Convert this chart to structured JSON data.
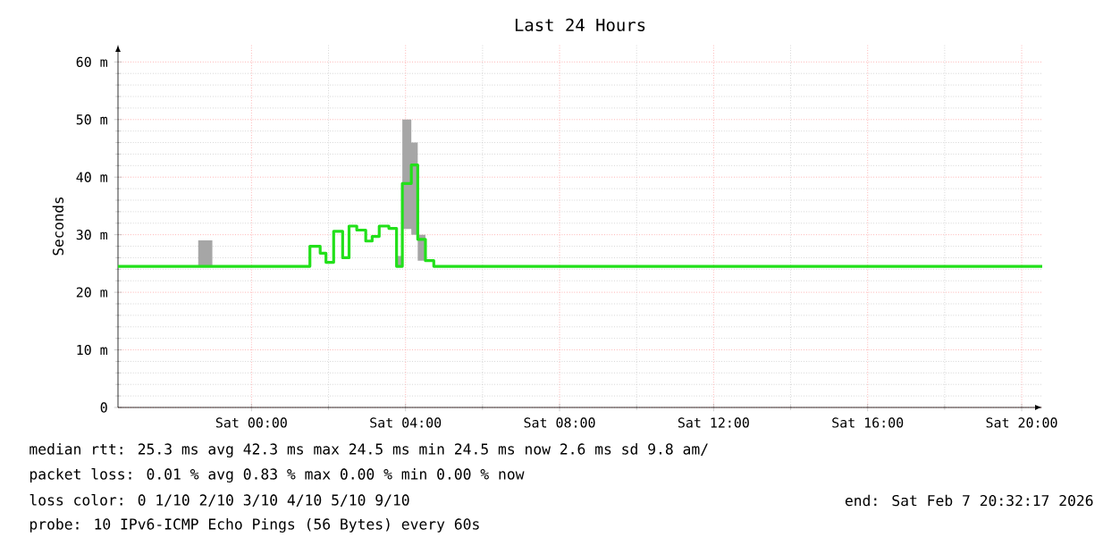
{
  "chart_data": {
    "type": "step",
    "title": "Last 24 Hours",
    "ylabel": "Seconds",
    "xlim": [
      "2026-02-06T20:32",
      "2026-02-07T20:32"
    ],
    "ylim": [
      0,
      63
    ],
    "xticks": [
      {
        "value": "2026-02-07T00:00",
        "label": "Sat 00:00"
      },
      {
        "value": "2026-02-07T04:00",
        "label": "Sat 04:00"
      },
      {
        "value": "2026-02-07T08:00",
        "label": "Sat 08:00"
      },
      {
        "value": "2026-02-07T12:00",
        "label": "Sat 12:00"
      },
      {
        "value": "2026-02-07T16:00",
        "label": "Sat 16:00"
      },
      {
        "value": "2026-02-07T20:00",
        "label": "Sat 20:00"
      }
    ],
    "yticks": [
      0,
      {
        "value": 10,
        "label": "10 m"
      },
      {
        "value": 20,
        "label": "20 m"
      },
      {
        "value": 30,
        "label": "30 m"
      },
      {
        "value": 40,
        "label": "40 m"
      },
      {
        "value": 50,
        "label": "50 m"
      },
      {
        "value": 60,
        "label": "60 m"
      }
    ],
    "grid": true,
    "series": [
      {
        "color": "#22e01a",
        "x": [
          "2026-02-06T20:32",
          "2026-02-06T22:37",
          "2026-02-06T22:59",
          "2026-02-07T01:31",
          "2026-02-07T01:47",
          "2026-02-07T01:56",
          "2026-02-07T02:08",
          "2026-02-07T02:22",
          "2026-02-07T02:32",
          "2026-02-07T02:44",
          "2026-02-07T02:58",
          "2026-02-07T03:08",
          "2026-02-07T03:19",
          "2026-02-07T03:34",
          "2026-02-07T03:46",
          "2026-02-07T03:55",
          "2026-02-07T04:09",
          "2026-02-07T04:19",
          "2026-02-07T04:31",
          "2026-02-07T04:44",
          "2026-02-07T20:32"
        ],
        "values": [
          24.5,
          24.5,
          24.5,
          28,
          26.8,
          25.2,
          30.6,
          26,
          31.5,
          30.8,
          28.9,
          29.7,
          31.5,
          31.1,
          24.5,
          38.9,
          42.1,
          29.2,
          25.5,
          24.5,
          24.5
        ],
        "lower": [
          24.5,
          24.5,
          24.5,
          28,
          26.8,
          25.2,
          30.6,
          26,
          31.5,
          30.8,
          28.9,
          29.7,
          31.5,
          31.1,
          24.5,
          31,
          30,
          25.5,
          25.5,
          24.5,
          24.5
        ],
        "upper": [
          24.5,
          29,
          24.5,
          28,
          26.8,
          25.2,
          30.6,
          26,
          31.5,
          30.8,
          28.9,
          29.7,
          31.5,
          31.1,
          26.3,
          50,
          46,
          30,
          25.5,
          24.5,
          24.5
        ]
      }
    ],
    "annotations": [
      "median rtt:  25.3 ms avg  42.3 ms max  24.5 ms min  24.5 ms now  2.6 ms sd  9.8  am/",
      "packet loss: 0.01 % avg  0.83 % max  0.00 % min  0.00 % now",
      "loss color:  0  1/10  2/10  3/10  4/10  5/10  9/10",
      "probe:       10 IPv6-ICMP Echo Pings (56 Bytes) every 60s",
      "end: Sat Feb  7 20:32:17 2026"
    ]
  }
}
